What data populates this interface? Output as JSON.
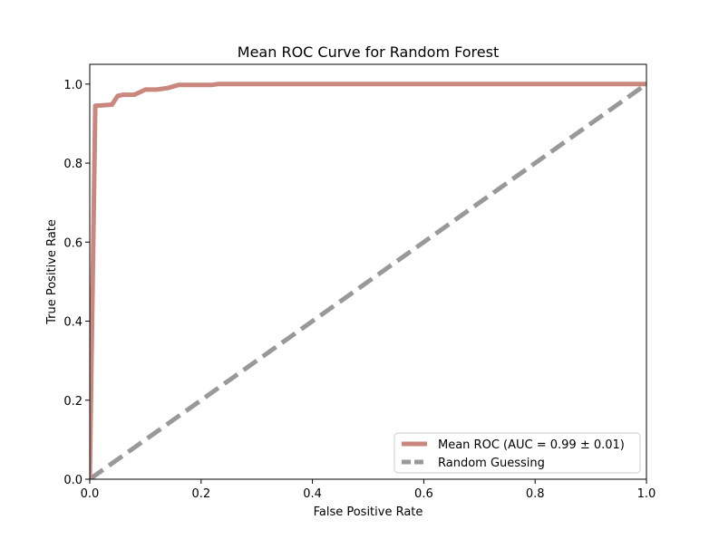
{
  "chart_data": {
    "type": "line",
    "title": "Mean ROC Curve for Random Forest",
    "xlabel": "False Positive Rate",
    "ylabel": "True Positive Rate",
    "xlim": [
      0.0,
      1.0
    ],
    "ylim": [
      0.0,
      1.05
    ],
    "xticks": [
      0.0,
      0.2,
      0.4,
      0.6,
      0.8,
      1.0
    ],
    "xtick_labels": [
      "0.0",
      "0.2",
      "0.4",
      "0.6",
      "0.8",
      "1.0"
    ],
    "yticks": [
      0.0,
      0.2,
      0.4,
      0.6,
      0.8,
      1.0
    ],
    "ytick_labels": [
      "0.0",
      "0.2",
      "0.4",
      "0.6",
      "0.8",
      "1.0"
    ],
    "grid": false,
    "legend_position": "lower-right",
    "series": [
      {
        "name": "Mean ROC (AUC = 0.99 ± 0.01)",
        "color": "#c9877e",
        "style": "solid",
        "x": [
          0.0,
          0.01,
          0.02,
          0.04,
          0.05,
          0.06,
          0.08,
          0.1,
          0.12,
          0.14,
          0.16,
          0.2,
          0.22,
          0.23,
          0.3,
          0.5,
          0.7,
          1.0
        ],
        "y": [
          0.0,
          0.945,
          0.946,
          0.948,
          0.97,
          0.973,
          0.973,
          0.986,
          0.986,
          0.99,
          0.998,
          0.998,
          0.998,
          1.0,
          1.0,
          1.0,
          1.0,
          1.0
        ]
      },
      {
        "name": "Random Guessing",
        "color": "#999999",
        "style": "dashed",
        "x": [
          0.0,
          1.0
        ],
        "y": [
          0.0,
          1.0
        ]
      }
    ]
  }
}
